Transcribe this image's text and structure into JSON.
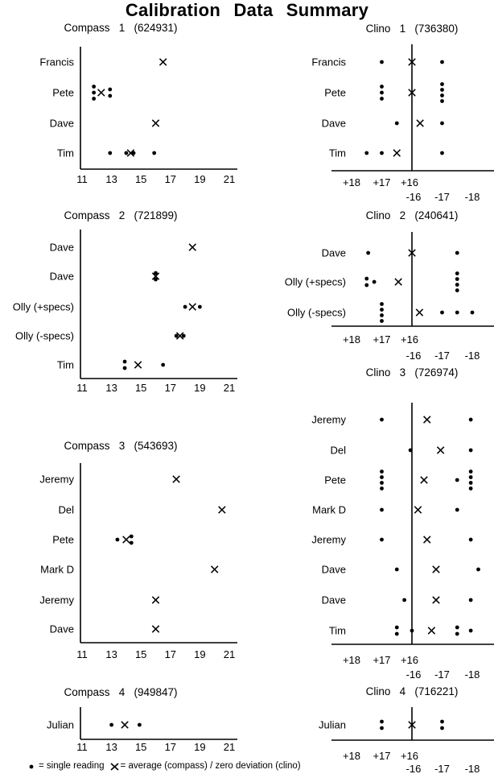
{
  "title": "Calibration Data Summary",
  "legend": {
    "dot_label": "= single reading",
    "x_label": "= average (compass) / zero deviation (clino)"
  },
  "compass_axis": {
    "min": 11,
    "max": 21,
    "tick_values": [
      11,
      13,
      15,
      17,
      19,
      21
    ],
    "tick_labels": [
      "11",
      "13",
      "15",
      "17",
      "19",
      "21"
    ]
  },
  "clino_axis": {
    "plus_tick_labels": [
      "+18",
      "+17",
      "+16"
    ],
    "plus_tick_devs": [
      -2,
      -1,
      0
    ],
    "minus_tick_labels": [
      "-16",
      "-17",
      "-18"
    ],
    "minus_tick_devs": [
      0,
      1,
      2
    ],
    "zero_line_dev": 0
  },
  "chart_data": [
    {
      "type": "scatter",
      "kind": "compass",
      "instrument": "Compass",
      "index": "1",
      "serial": "(624931)",
      "rows": [
        {
          "name": "Francis",
          "dots": [],
          "avg": [
            16.5
          ]
        },
        {
          "name": "Pete",
          "dots": [
            11.8,
            11.8,
            11.8,
            12.9,
            12.9
          ],
          "avg": [
            12.3
          ]
        },
        {
          "name": "Dave",
          "dots": [],
          "avg": [
            16.0
          ]
        },
        {
          "name": "Tim",
          "dots": [
            12.9,
            14.0,
            14.5,
            15.9
          ],
          "avg": [
            14.3
          ]
        }
      ]
    },
    {
      "type": "scatter",
      "kind": "clino",
      "instrument": "Clino",
      "index": "1",
      "serial": "(736380)",
      "rows": [
        {
          "name": "Francis",
          "dots": [
            -1,
            1
          ],
          "avg": [
            0
          ]
        },
        {
          "name": "Pete",
          "dots": [
            -1,
            -1,
            -1,
            1,
            1,
            1,
            1
          ],
          "avg": [
            0
          ]
        },
        {
          "name": "Dave",
          "dots": [
            -0.5,
            1
          ],
          "avg": [
            0.27
          ]
        },
        {
          "name": "Tim",
          "dots": [
            -1.5,
            -1,
            1
          ],
          "avg": [
            -0.5
          ]
        }
      ]
    },
    {
      "type": "scatter",
      "kind": "compass",
      "instrument": "Compass",
      "index": "2",
      "serial": "(721899)",
      "rows": [
        {
          "name": "Dave",
          "dots": [],
          "avg": [
            18.5
          ]
        },
        {
          "name": "Dave",
          "dots": [
            16.0,
            16.0
          ],
          "avg": [
            16.0
          ]
        },
        {
          "name": "Olly (+specs)",
          "dots": [
            18.0,
            19.0
          ],
          "avg": [
            18.5
          ]
        },
        {
          "name": "Olly (-specs)",
          "dots": [
            17.4,
            17.9
          ],
          "avg": [
            17.65
          ]
        },
        {
          "name": "Tim",
          "dots": [
            13.9,
            13.9,
            16.5
          ],
          "avg": [
            14.8
          ]
        }
      ]
    },
    {
      "type": "scatter",
      "kind": "clino",
      "instrument": "Clino",
      "index": "2",
      "serial": "(240641)",
      "rows": [
        {
          "name": "Dave",
          "dots": [
            -1.45,
            1.5
          ],
          "avg": [
            0
          ]
        },
        {
          "name": "Olly (+specs)",
          "dots": [
            -1.5,
            -1.5,
            -1.25,
            1.5,
            1.5,
            1.5,
            1.5
          ],
          "avg": [
            -0.45
          ]
        },
        {
          "name": "Olly (-specs)",
          "dots": [
            -1,
            -1,
            -1,
            -1,
            1,
            1.5,
            2
          ],
          "avg": [
            0.25
          ]
        }
      ]
    },
    {
      "type": "scatter",
      "kind": "compass",
      "instrument": "Compass",
      "index": "3",
      "serial": "(543693)",
      "rows": [
        {
          "name": "Jeremy",
          "dots": [],
          "avg": [
            17.4
          ]
        },
        {
          "name": "Del",
          "dots": [],
          "avg": [
            20.5
          ]
        },
        {
          "name": "Pete",
          "dots": [
            13.4,
            14.35,
            14.35
          ],
          "avg": [
            14.0
          ]
        },
        {
          "name": "Mark D",
          "dots": [],
          "avg": [
            20.0
          ]
        },
        {
          "name": "Jeremy",
          "dots": [],
          "avg": [
            16.0
          ]
        },
        {
          "name": "Dave",
          "dots": [],
          "avg": [
            16.0
          ]
        }
      ]
    },
    {
      "type": "scatter",
      "kind": "clino",
      "instrument": "Clino",
      "index": "3",
      "serial": "(726974)",
      "rows": [
        {
          "name": "Jeremy",
          "dots": [
            -1,
            1.95
          ],
          "avg": [
            0.5
          ]
        },
        {
          "name": "Del",
          "dots": [
            -0.05,
            1.95
          ],
          "avg": [
            0.95
          ]
        },
        {
          "name": "Pete",
          "dots": [
            -1,
            -1,
            -1,
            -1,
            1.5,
            1.95,
            1.95,
            1.95,
            1.95
          ],
          "avg": [
            0.4
          ]
        },
        {
          "name": "Mark D",
          "dots": [
            -1,
            1.5
          ],
          "avg": [
            0.2
          ]
        },
        {
          "name": "Jeremy",
          "dots": [
            -1,
            1.95
          ],
          "avg": [
            0.5
          ]
        },
        {
          "name": "Dave",
          "dots": [
            -0.5,
            2.2
          ],
          "avg": [
            0.8
          ]
        },
        {
          "name": "Dave",
          "dots": [
            -0.25,
            1.95
          ],
          "avg": [
            0.8
          ]
        },
        {
          "name": "Tim",
          "dots": [
            -0.5,
            -0.5,
            0,
            1.5,
            1.5,
            1.95
          ],
          "avg": [
            0.65
          ]
        }
      ]
    },
    {
      "type": "scatter",
      "kind": "compass",
      "instrument": "Compass",
      "index": "4",
      "serial": "(949847)",
      "rows": [
        {
          "name": "Julian",
          "dots": [
            13.0,
            14.9
          ],
          "avg": [
            13.9
          ]
        }
      ]
    },
    {
      "type": "scatter",
      "kind": "clino",
      "instrument": "Clino",
      "index": "4",
      "serial": "(716221)",
      "rows": [
        {
          "name": "Julian",
          "dots": [
            -1,
            -1,
            1,
            1
          ],
          "avg": [
            0
          ]
        }
      ]
    }
  ]
}
